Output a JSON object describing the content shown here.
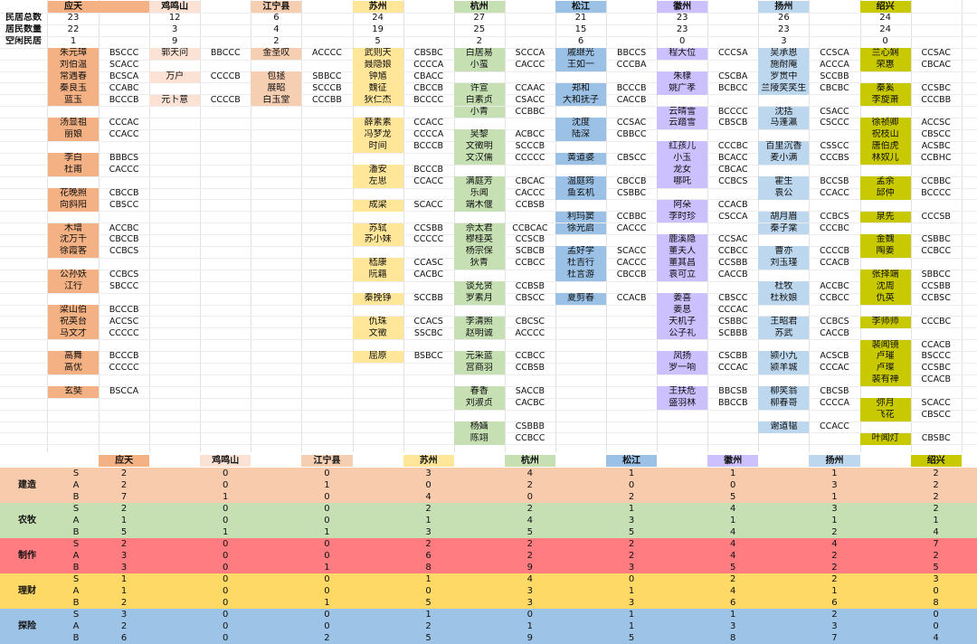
{
  "colors": {
    "yingtian": "#f4b183",
    "jimingshan": "#fbe2d5",
    "jiangning": "#f6ceb2",
    "suzhou": "#ffe699",
    "hangzhou": "#c6e0b4",
    "songjiang": "#9bc2e6",
    "huizhou": "#ccc0ff",
    "yangzhou": "#bdd7ee",
    "shaoxing": "#c9c900",
    "band_jianzao": "#f8cbad",
    "band_nongmu": "#c6e0b4",
    "band_zhizuo": "#ff7c80",
    "band_licai": "#ffd966",
    "band_tanxian": "#9dc3e6"
  },
  "row_labels": [
    "民居总数",
    "居民数量",
    "空闲民居"
  ],
  "cities": [
    {
      "name": "应天",
      "color": "yingtian",
      "stats": [
        "23",
        "22",
        "1"
      ]
    },
    {
      "name": "鸡鸣山",
      "color": "jimingshan",
      "stats": [
        "12",
        "3",
        "9"
      ]
    },
    {
      "name": "江宁县",
      "color": "jiangning",
      "stats": [
        "6",
        "4",
        "2"
      ]
    },
    {
      "name": "苏州",
      "color": "suzhou",
      "stats": [
        "24",
        "19",
        "5"
      ]
    },
    {
      "name": "杭州",
      "color": "hangzhou",
      "stats": [
        "27",
        "25",
        "2"
      ]
    },
    {
      "name": "松江",
      "color": "songjiang",
      "stats": [
        "21",
        "15",
        "6"
      ]
    },
    {
      "name": "徽州",
      "color": "huizhou",
      "stats": [
        "23",
        "23",
        "0"
      ]
    },
    {
      "name": "扬州",
      "color": "yangzhou",
      "stats": [
        "26",
        "23",
        "3"
      ]
    },
    {
      "name": "绍兴",
      "color": "shaoxing",
      "stats": [
        "24",
        "24",
        "0"
      ]
    }
  ],
  "residents": [
    [
      [
        0,
        "朱元璋",
        "BSCCC"
      ],
      [
        1,
        "刘伯温",
        "SCACC"
      ],
      [
        2,
        "常遇春",
        "BCSCA"
      ],
      [
        3,
        "秦良玉",
        "CCABC"
      ],
      [
        4,
        "蓝玉",
        "BCCCB"
      ],
      [
        6,
        "汤显祖",
        "CCCAC"
      ],
      [
        7,
        "丽娘",
        "CCACC"
      ],
      [
        9,
        "李白",
        "BBBCS"
      ],
      [
        10,
        "杜甫",
        "CACCC"
      ],
      [
        12,
        "花晚照",
        "CBCCB"
      ],
      [
        13,
        "向斜阳",
        "CBSCC"
      ],
      [
        15,
        "木增",
        "ACCBC"
      ],
      [
        16,
        "沈万千",
        "CBCCB"
      ],
      [
        17,
        "徐霞客",
        "CCBCS"
      ],
      [
        19,
        "公孙妖",
        "CCBCS"
      ],
      [
        20,
        "江行",
        "SBCCC"
      ],
      [
        22,
        "梁山伯",
        "BCCCB"
      ],
      [
        23,
        "祝英台",
        "ACCSC"
      ],
      [
        24,
        "马文才",
        "CCCCC"
      ],
      [
        26,
        "高舞",
        "BCCCB"
      ],
      [
        27,
        "高优",
        "CCCCC"
      ],
      [
        29,
        "玄奘",
        "BSCCA"
      ]
    ],
    [
      [
        0,
        "郭天问",
        "BBCCC"
      ],
      [
        2,
        "万户",
        "CCCCB"
      ],
      [
        4,
        "元卜意",
        "CCCCB"
      ]
    ],
    [
      [
        0,
        "金圣叹",
        "ACCCC"
      ],
      [
        2,
        "包拯",
        "SBBCC"
      ],
      [
        3,
        "展昭",
        "SCCCB"
      ],
      [
        4,
        "白玉堂",
        "CCCBB"
      ]
    ],
    [
      [
        0,
        "武则天",
        "CBSBC"
      ],
      [
        1,
        "聂隐娘",
        "CCCCA"
      ],
      [
        2,
        "钟馗",
        "CBACC"
      ],
      [
        3,
        "魏征",
        "CBCCB"
      ],
      [
        4,
        "狄仁杰",
        "BCCCC"
      ],
      [
        6,
        "薛素素",
        "CCACC"
      ],
      [
        7,
        "冯梦龙",
        "CCCCA"
      ],
      [
        8,
        "时间",
        "BCCCB"
      ],
      [
        10,
        "潘安",
        "BCCCB"
      ],
      [
        11,
        "左思",
        "CCACC"
      ],
      [
        13,
        "成梁",
        "SCACC"
      ],
      [
        15,
        "苏轼",
        "CCSBB"
      ],
      [
        16,
        "苏小妹",
        "CCCCC"
      ],
      [
        18,
        "嵇康",
        "CCASC"
      ],
      [
        19,
        "阮籍",
        "CACBC"
      ],
      [
        21,
        "秦挽铮",
        "SCCBB"
      ],
      [
        23,
        "仇珠",
        "CCACS"
      ],
      [
        24,
        "文徵",
        "SSCBC"
      ],
      [
        26,
        "屈原",
        "BSBCC"
      ]
    ],
    [
      [
        0,
        "白居易",
        "SCCCA"
      ],
      [
        1,
        "小蛮",
        "CACCC"
      ],
      [
        3,
        "许宣",
        "CCAAC"
      ],
      [
        4,
        "白素贞",
        "CSACC"
      ],
      [
        5,
        "小青",
        "CCBBC"
      ],
      [
        7,
        "吴黎",
        "ACBCC"
      ],
      [
        8,
        "文徵明",
        "SCCCB"
      ],
      [
        9,
        "文汉儒",
        "CCCCC"
      ],
      [
        11,
        "满庭芳",
        "CBCAC"
      ],
      [
        12,
        "乐闻",
        "CACCC"
      ],
      [
        13,
        "端木偃",
        "CCBSB"
      ],
      [
        15,
        "佘太君",
        "CCBCAC"
      ],
      [
        16,
        "穆桂英",
        "CCSCB"
      ],
      [
        17,
        "杨宗保",
        "SCBCB"
      ],
      [
        18,
        "狄青",
        "CCBCC"
      ],
      [
        20,
        "谈允贤",
        "CCBSB"
      ],
      [
        21,
        "罗素月",
        "CBSCC"
      ],
      [
        23,
        "李清照",
        "CBCSC"
      ],
      [
        24,
        "赵明诚",
        "ACCCC"
      ],
      [
        26,
        "元采蓝",
        "CCBCC"
      ],
      [
        27,
        "宫商羽",
        "CCBSB"
      ],
      [
        29,
        "春香",
        "SACCB"
      ],
      [
        30,
        "刘淑贞",
        "CACBC"
      ],
      [
        32,
        "杨婳",
        "CSBBB"
      ],
      [
        33,
        "陈翊",
        "CCBCC"
      ]
    ],
    [
      [
        0,
        "戚继光",
        "BBCCS"
      ],
      [
        1,
        "王如一",
        "CCCBA"
      ],
      [
        3,
        "郑和",
        "BCCCB"
      ],
      [
        4,
        "大和抚子",
        "CACCB"
      ],
      [
        6,
        "沈度",
        "CCSAC"
      ],
      [
        7,
        "陆深",
        "CBBCC"
      ],
      [
        9,
        "黄道婆",
        "CBSCC"
      ],
      [
        11,
        "温庭筠",
        "CBCCB"
      ],
      [
        12,
        "鱼玄机",
        "CSBBC"
      ],
      [
        14,
        "利玛窦",
        "CCBBC"
      ],
      [
        15,
        "徐光启",
        "CACCC"
      ],
      [
        17,
        "孟好学",
        "SCACC"
      ],
      [
        18,
        "杜吉行",
        "CACCC"
      ],
      [
        19,
        "杜言游",
        "CBCCB"
      ],
      [
        21,
        "夏剪春",
        "CCACB"
      ]
    ],
    [
      [
        0,
        "程大位",
        "CCCSA"
      ],
      [
        2,
        "朱棣",
        "CSCBA"
      ],
      [
        3,
        "姚广孝",
        "BCBCC"
      ],
      [
        5,
        "云晴雪",
        "BCCCC"
      ],
      [
        6,
        "云踏雪",
        "CBSCB"
      ],
      [
        8,
        "红孩儿",
        "CCCBC"
      ],
      [
        9,
        "小玉",
        "BCACC"
      ],
      [
        10,
        "龙女",
        "CBCAC"
      ],
      [
        11,
        "哪吒",
        "CCBCS"
      ],
      [
        13,
        "阿朵",
        "CCACB"
      ],
      [
        14,
        "李时珍",
        "CSCCA"
      ],
      [
        16,
        "鹿溪隐",
        "CCSAC"
      ],
      [
        17,
        "董夫人",
        "CCBCC"
      ],
      [
        18,
        "董其昌",
        "CCSBB"
      ],
      [
        19,
        "袁可立",
        "CACCB"
      ],
      [
        21,
        "姜喜",
        "CBSCC"
      ],
      [
        22,
        "姜息",
        "CCCAC"
      ],
      [
        23,
        "天机子",
        "CSBBC"
      ],
      [
        24,
        "公子礼",
        "SCBBB"
      ],
      [
        26,
        "凤扬",
        "CSCBB"
      ],
      [
        27,
        "罗一响",
        "CCCAC"
      ],
      [
        29,
        "王扶危",
        "BBCSB"
      ],
      [
        30,
        "盛羽林",
        "BBCCB"
      ]
    ],
    [
      [
        0,
        "吴承恩",
        "CCSCA"
      ],
      [
        1,
        "施耐庵",
        "ACCCA"
      ],
      [
        2,
        "罗贯中",
        "SCCBB"
      ],
      [
        3,
        "兰陵笑笑生",
        "CBCBC"
      ],
      [
        5,
        "沈括",
        "CSACC"
      ],
      [
        6,
        "马蓬瀛",
        "CSCCC"
      ],
      [
        8,
        "百里沉香",
        "CSSCC"
      ],
      [
        9,
        "麦小满",
        "CCCBS"
      ],
      [
        11,
        "霍生",
        "BCCSB"
      ],
      [
        12,
        "袁公",
        "CCACC"
      ],
      [
        14,
        "胡月眉",
        "CCBCS"
      ],
      [
        15,
        "秦子棠",
        "CCCBC"
      ],
      [
        17,
        "曹亦",
        "CCCCB"
      ],
      [
        18,
        "刘玉瑾",
        "CCACB"
      ],
      [
        20,
        "杜牧",
        "ACCBC"
      ],
      [
        21,
        "杜秋娘",
        "CCBCC"
      ],
      [
        23,
        "王昭君",
        "CCBCS"
      ],
      [
        24,
        "苏武",
        "CACCB"
      ],
      [
        26,
        "颍小九",
        "ACSCB"
      ],
      [
        27,
        "颍羊城",
        "CCCAC"
      ],
      [
        29,
        "柳笑翁",
        "CBCSB"
      ],
      [
        30,
        "柳春哥",
        "CCCCA"
      ],
      [
        32,
        "谢道韫",
        "CCACC"
      ]
    ],
    [
      [
        0,
        "兰心娴",
        "CCSAC"
      ],
      [
        1,
        "荣惠",
        "CBCAC"
      ],
      [
        3,
        "秦奚",
        "CCSBC"
      ],
      [
        4,
        "李旋萧",
        "CCCBB"
      ],
      [
        6,
        "徐祯卿",
        "ACCSC"
      ],
      [
        7,
        "祝枝山",
        "CBSCC"
      ],
      [
        8,
        "唐伯虎",
        "ACSBC"
      ],
      [
        9,
        "林奴儿",
        "CCBHC"
      ],
      [
        11,
        "孟余",
        "CCBBC"
      ],
      [
        12,
        "邱仲",
        "BCCCC"
      ],
      [
        14,
        "泉先",
        "CCCSB"
      ],
      [
        16,
        "金魏",
        "CSBBC"
      ],
      [
        17,
        "陶姜",
        "CCBCC"
      ],
      [
        19,
        "张择端",
        "SBBCC"
      ],
      [
        20,
        "沈周",
        "CCSBB"
      ],
      [
        21,
        "仇英",
        "CCBSC"
      ],
      [
        23,
        "李师师",
        "CCCBC"
      ],
      [
        25,
        "裴闻镜",
        "CCACB"
      ],
      [
        26,
        "卢璀",
        "BSCCC"
      ],
      [
        27,
        "卢璨",
        "CCSBC"
      ],
      [
        28,
        "裴有禅",
        "CCACB"
      ],
      [
        30,
        "弥月",
        "SCACC"
      ],
      [
        31,
        "飞花",
        "CBSCC"
      ],
      [
        33,
        "叶闻灯",
        "CBSBC"
      ]
    ]
  ],
  "bottom_header": [
    "应天",
    "鸡鸣山",
    "江宁县",
    "苏州",
    "杭州",
    "松江",
    "徽州",
    "扬州",
    "绍兴"
  ],
  "bands": [
    {
      "name": "建造",
      "color": "band_jianzao",
      "rows": [
        {
          "lv": "S",
          "v": [
            "2",
            "0",
            "0",
            "3",
            "4",
            "1",
            "1",
            "1",
            "2"
          ]
        },
        {
          "lv": "A",
          "v": [
            "2",
            "0",
            "1",
            "0",
            "2",
            "0",
            "0",
            "3",
            "2"
          ]
        },
        {
          "lv": "B",
          "v": [
            "7",
            "1",
            "0",
            "4",
            "0",
            "2",
            "5",
            "1",
            "2"
          ]
        }
      ]
    },
    {
      "name": "农牧",
      "color": "band_nongmu",
      "rows": [
        {
          "lv": "S",
          "v": [
            "2",
            "0",
            "0",
            "2",
            "2",
            "1",
            "4",
            "3",
            "2"
          ]
        },
        {
          "lv": "A",
          "v": [
            "1",
            "0",
            "0",
            "1",
            "4",
            "3",
            "1",
            "1",
            "1"
          ]
        },
        {
          "lv": "B",
          "v": [
            "5",
            "1",
            "1",
            "3",
            "5",
            "5",
            "4",
            "2",
            "4"
          ]
        }
      ]
    },
    {
      "name": "制作",
      "color": "band_zhizuo",
      "rows": [
        {
          "lv": "S",
          "v": [
            "2",
            "0",
            "0",
            "2",
            "2",
            "2",
            "4",
            "4",
            "7"
          ]
        },
        {
          "lv": "A",
          "v": [
            "3",
            "0",
            "0",
            "6",
            "2",
            "2",
            "4",
            "2",
            "2"
          ]
        },
        {
          "lv": "B",
          "v": [
            "3",
            "0",
            "1",
            "8",
            "9",
            "3",
            "5",
            "2",
            "5"
          ]
        }
      ]
    },
    {
      "name": "理财",
      "color": "band_licai",
      "rows": [
        {
          "lv": "S",
          "v": [
            "1",
            "0",
            "0",
            "1",
            "4",
            "0",
            "2",
            "2",
            "3"
          ]
        },
        {
          "lv": "A",
          "v": [
            "1",
            "0",
            "0",
            "0",
            "3",
            "1",
            "4",
            "1",
            "0"
          ]
        },
        {
          "lv": "B",
          "v": [
            "2",
            "0",
            "1",
            "5",
            "3",
            "3",
            "6",
            "6",
            "8"
          ]
        }
      ]
    },
    {
      "name": "探险",
      "color": "band_tanxian",
      "rows": [
        {
          "lv": "S",
          "v": [
            "3",
            "0",
            "0",
            "1",
            "0",
            "1",
            "1",
            "2",
            "0"
          ]
        },
        {
          "lv": "A",
          "v": [
            "2",
            "0",
            "0",
            "2",
            "1",
            "1",
            "3",
            "3",
            "0"
          ]
        },
        {
          "lv": "B",
          "v": [
            "6",
            "0",
            "2",
            "5",
            "9",
            "5",
            "8",
            "7",
            "4"
          ]
        }
      ]
    }
  ]
}
